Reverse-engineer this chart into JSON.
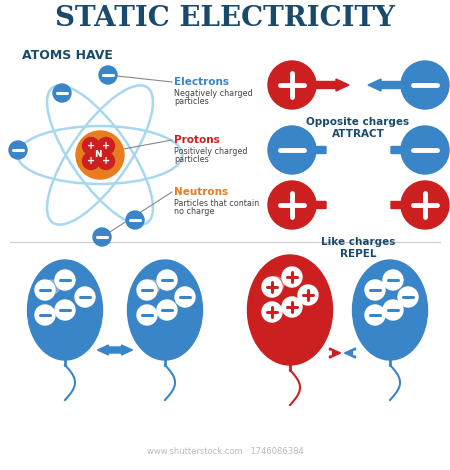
{
  "title": "STATIC ELECTRICITY",
  "title_color": "#1a4a6b",
  "bg_color": "#ffffff",
  "atoms_have_label": "ATOMS HAVE",
  "electron_label": "Electrons",
  "electron_desc": "Negatively charged\nparticles",
  "proton_label": "Protons",
  "proton_desc": "Positively charged\nparticles",
  "neutron_label": "Neutrons",
  "neutron_desc": "Particles that contain\nno charge",
  "opposite_label": "Opposite charges\nATTRACT",
  "like_label": "Like charges\nREPEL",
  "blue_color": "#3a85c8",
  "blue_light": "#5aaee8",
  "red_color": "#cc2020",
  "orange_color": "#e87c1e",
  "text_color": "#1a4a6b",
  "orbit_color": "#a8d8ee",
  "gray_text": "#444444",
  "shutterstock_text": "www.shutterstock.com · 1746086384"
}
